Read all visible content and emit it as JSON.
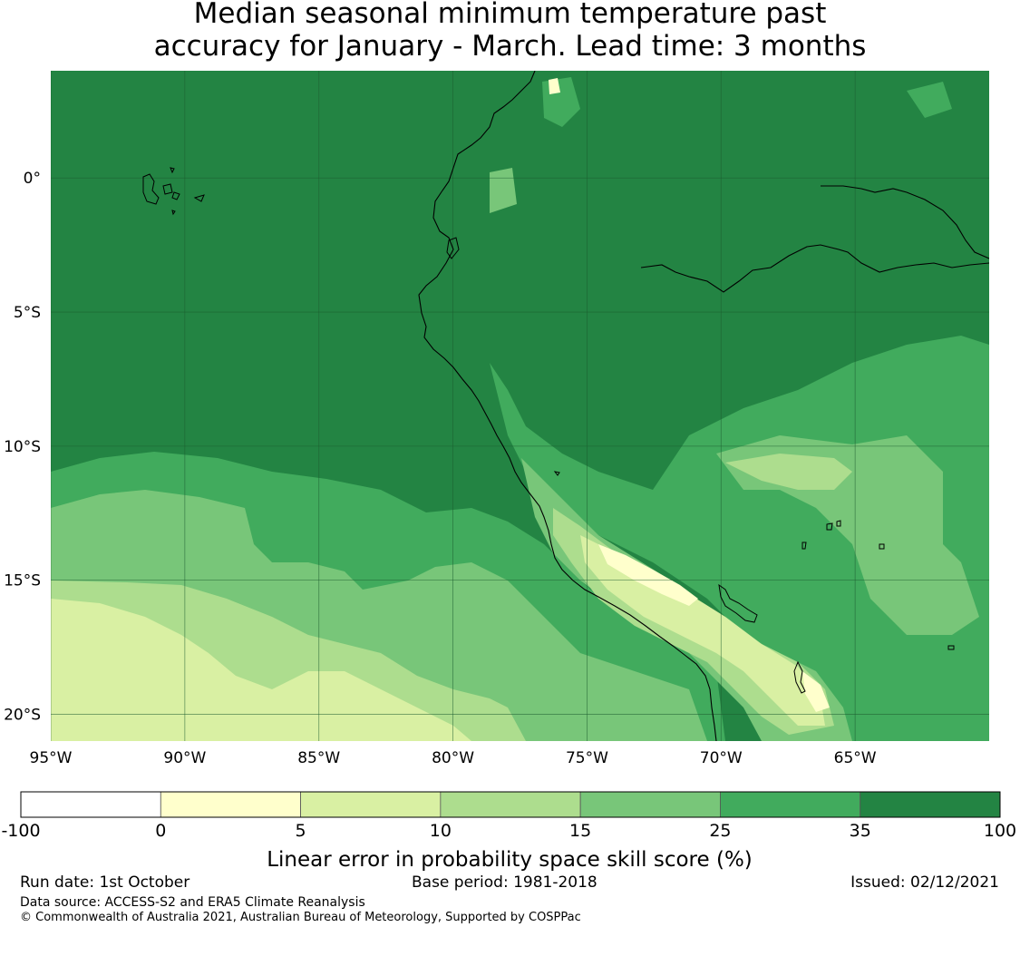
{
  "title_lines": [
    "Median seasonal minimum temperature past",
    "accuracy for January - March. Lead time: 3 months"
  ],
  "map": {
    "lon_range": [
      -95,
      -60
    ],
    "lat_range": [
      -21,
      4
    ],
    "lon_ticks": [
      {
        "value": -95,
        "label": "95°W"
      },
      {
        "value": -90,
        "label": "90°W"
      },
      {
        "value": -85,
        "label": "85°W"
      },
      {
        "value": -80,
        "label": "80°W"
      },
      {
        "value": -75,
        "label": "75°W"
      },
      {
        "value": -70,
        "label": "70°W"
      },
      {
        "value": -65,
        "label": "65°W"
      }
    ],
    "lat_ticks": [
      {
        "value": 0,
        "label": "0°"
      },
      {
        "value": -5,
        "label": "5°S"
      },
      {
        "value": -10,
        "label": "10°S"
      },
      {
        "value": -15,
        "label": "15°S"
      },
      {
        "value": -20,
        "label": "20°S"
      }
    ],
    "gridlines": true,
    "regions": [
      {
        "category": "35-100",
        "color": "#238443",
        "desc": "background / most of domain"
      },
      {
        "category": "25-35",
        "color": "#41ab5d"
      },
      {
        "category": "15-25",
        "color": "#78c679"
      },
      {
        "category": "10-15",
        "color": "#addd8e"
      },
      {
        "category": "5-10",
        "color": "#d9f0a3"
      },
      {
        "category": "0-5",
        "color": "#ffffcc"
      }
    ]
  },
  "colorbar": {
    "title": "Linear error in probability space skill score (%)",
    "boundaries": [
      "-100",
      "0",
      "5",
      "10",
      "15",
      "25",
      "35",
      "100"
    ],
    "colors": [
      "#ffffff",
      "#ffffcc",
      "#d9f0a3",
      "#addd8e",
      "#78c679",
      "#41ab5d",
      "#238443"
    ]
  },
  "footer": {
    "run_date": "Run date: 1st October",
    "base_period": "Base period: 1981-2018",
    "issued": "Issued: 02/12/2021",
    "data_source": "Data source: ACCESS-S2 and ERA5 Climate Reanalysis",
    "copyright": "© Commonwealth of Australia 2021, Australian Bureau of Meteorology, Supported by COSPPac"
  }
}
